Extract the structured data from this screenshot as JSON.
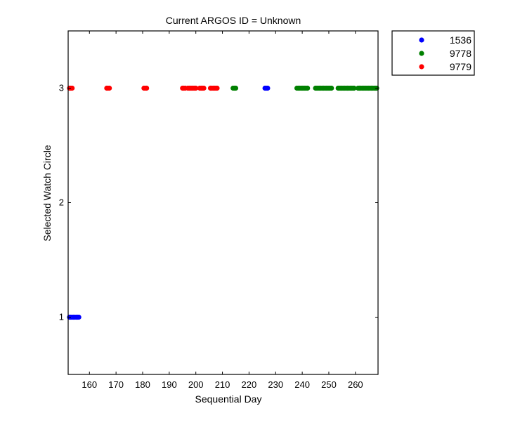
{
  "chart_data": {
    "type": "scatter",
    "title": "Current ARGOS ID = Unknown",
    "xlabel": "Sequential Day",
    "ylabel": "Selected Watch Circle",
    "xlim": [
      152,
      268.5
    ],
    "ylim": [
      0.5,
      3.5
    ],
    "xticks": [
      160,
      170,
      180,
      190,
      200,
      210,
      220,
      230,
      240,
      250,
      260
    ],
    "yticks": [
      1,
      2,
      3
    ],
    "legend_position": "outside-top-right",
    "series": [
      {
        "name": "1536",
        "color": "#0000ff",
        "points": [
          [
            152.5,
            1
          ],
          [
            153,
            1
          ],
          [
            153.5,
            1
          ],
          [
            154,
            1
          ],
          [
            154.5,
            1
          ],
          [
            155,
            1
          ],
          [
            155.5,
            1
          ],
          [
            156,
            1
          ],
          [
            226,
            3
          ],
          [
            226.5,
            3
          ],
          [
            227,
            3
          ]
        ]
      },
      {
        "name": "9778",
        "color": "#008000",
        "points": [
          [
            214,
            3
          ],
          [
            214.5,
            3
          ],
          [
            215,
            3
          ],
          [
            238,
            3
          ],
          [
            238.5,
            3
          ],
          [
            239,
            3
          ],
          [
            239.5,
            3
          ],
          [
            240,
            3
          ],
          [
            240.5,
            3
          ],
          [
            241,
            3
          ],
          [
            241.5,
            3
          ],
          [
            242,
            3
          ],
          [
            245,
            3
          ],
          [
            245.5,
            3
          ],
          [
            246,
            3
          ],
          [
            246.5,
            3
          ],
          [
            247,
            3
          ],
          [
            247.5,
            3
          ],
          [
            248,
            3
          ],
          [
            248.5,
            3
          ],
          [
            249,
            3
          ],
          [
            249.5,
            3
          ],
          [
            250,
            3
          ],
          [
            250.5,
            3
          ],
          [
            251,
            3
          ],
          [
            253.5,
            3
          ],
          [
            254,
            3
          ],
          [
            254.5,
            3
          ],
          [
            255,
            3
          ],
          [
            255.5,
            3
          ],
          [
            256,
            3
          ],
          [
            256.5,
            3
          ],
          [
            257,
            3
          ],
          [
            257.5,
            3
          ],
          [
            258,
            3
          ],
          [
            258.5,
            3
          ],
          [
            259,
            3
          ],
          [
            259.5,
            3
          ],
          [
            261,
            3
          ],
          [
            261.5,
            3
          ],
          [
            262,
            3
          ],
          [
            262.5,
            3
          ],
          [
            263,
            3
          ],
          [
            263.5,
            3
          ],
          [
            264,
            3
          ],
          [
            264.5,
            3
          ],
          [
            265,
            3
          ],
          [
            265.5,
            3
          ],
          [
            266,
            3
          ],
          [
            266.5,
            3
          ],
          [
            267,
            3
          ],
          [
            267.5,
            3
          ],
          [
            268,
            3
          ]
        ]
      },
      {
        "name": "9779",
        "color": "#ff0000",
        "points": [
          [
            152.5,
            3
          ],
          [
            153,
            3
          ],
          [
            153.5,
            3
          ],
          [
            166.5,
            3
          ],
          [
            167,
            3
          ],
          [
            167.5,
            3
          ],
          [
            180.5,
            3
          ],
          [
            181,
            3
          ],
          [
            181.5,
            3
          ],
          [
            195,
            3
          ],
          [
            195.5,
            3
          ],
          [
            196,
            3
          ],
          [
            197,
            3
          ],
          [
            197.5,
            3
          ],
          [
            198,
            3
          ],
          [
            198.5,
            3
          ],
          [
            199,
            3
          ],
          [
            199.5,
            3
          ],
          [
            200,
            3
          ],
          [
            201.5,
            3
          ],
          [
            202,
            3
          ],
          [
            202.5,
            3
          ],
          [
            203,
            3
          ],
          [
            205.5,
            3
          ],
          [
            206,
            3
          ],
          [
            206.5,
            3
          ],
          [
            207,
            3
          ],
          [
            207.5,
            3
          ],
          [
            208,
            3
          ]
        ]
      }
    ]
  }
}
